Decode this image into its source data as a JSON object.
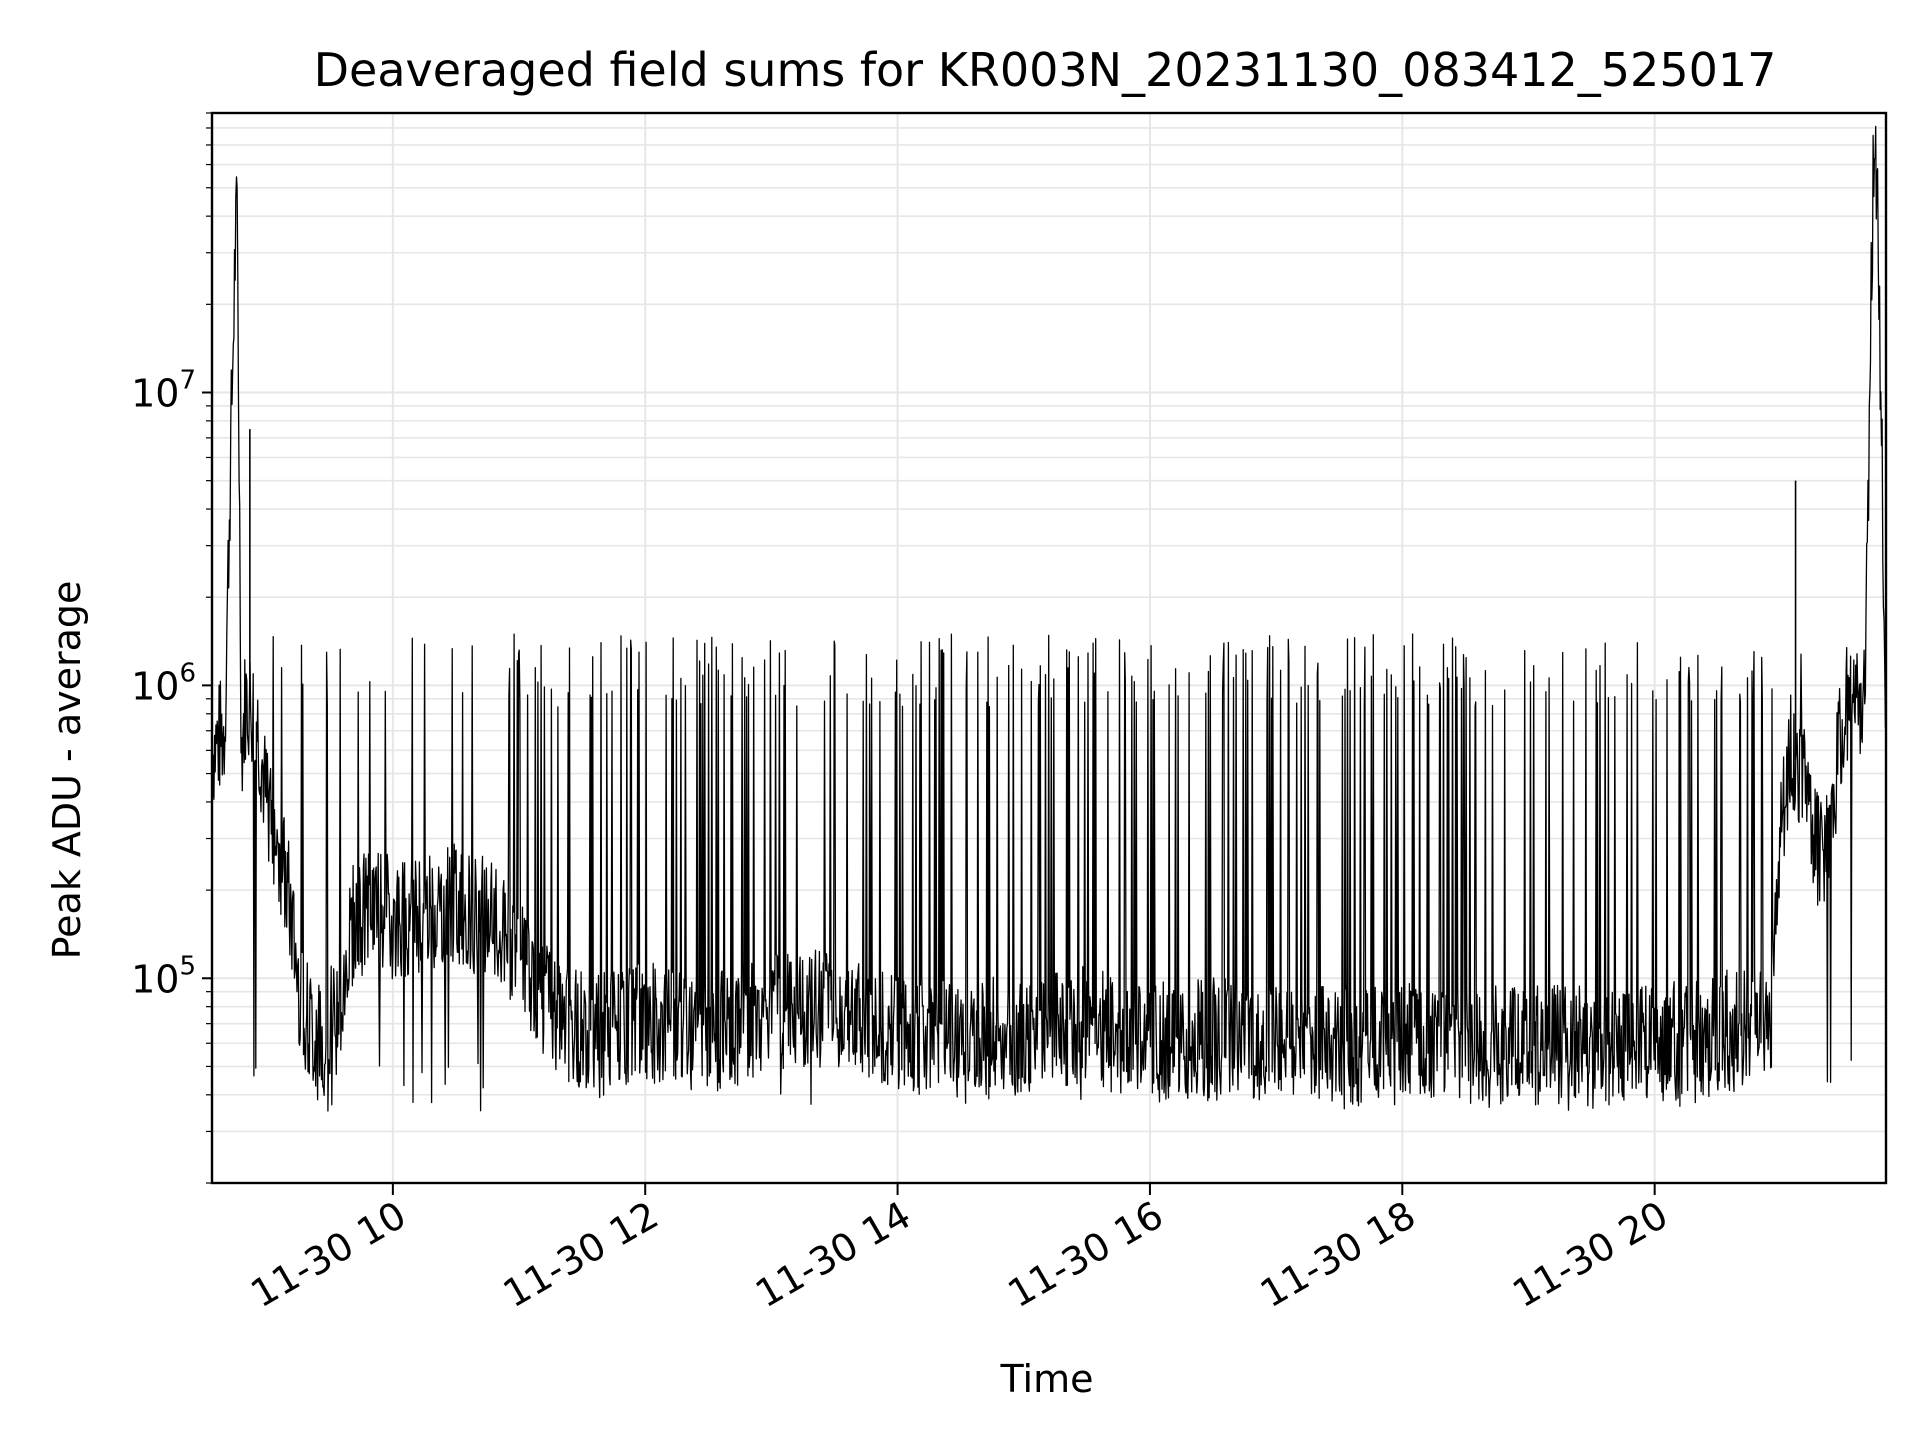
{
  "chart_data": {
    "type": "line",
    "title": "Deaveraged field sums for KR003N_20231130_083412_525017",
    "xlabel": "Time",
    "ylabel": "Peak ADU - average",
    "yscale": "log",
    "grid": true,
    "legend": "none",
    "line_color": "#000000",
    "grid_color": "#e6e6e6",
    "xlim": [
      "2023-11-30 08:34",
      "2023-11-30 21:50"
    ],
    "ylim": [
      20000,
      90000000
    ],
    "x_ticks": [
      {
        "value": "2023-11-30 10:00",
        "label": "11-30 10"
      },
      {
        "value": "2023-11-30 12:00",
        "label": "11-30 12"
      },
      {
        "value": "2023-11-30 14:00",
        "label": "11-30 14"
      },
      {
        "value": "2023-11-30 16:00",
        "label": "11-30 16"
      },
      {
        "value": "2023-11-30 18:00",
        "label": "11-30 18"
      },
      {
        "value": "2023-11-30 20:00",
        "label": "11-30 20"
      }
    ],
    "y_ticks": [
      {
        "value": 100000,
        "base": "10",
        "exp": "5"
      },
      {
        "value": 1000000,
        "base": "10",
        "exp": "6"
      },
      {
        "value": 10000000,
        "base": "10",
        "exp": "7"
      }
    ],
    "series": [
      {
        "x": [
          "2023-11-30 08:34",
          "2023-11-30 08:40",
          "2023-11-30 08:45",
          "2023-11-30 08:46",
          "2023-11-30 08:48",
          "2023-11-30 08:50",
          "2023-11-30 08:55",
          "2023-11-30 09:00",
          "2023-11-30 09:05",
          "2023-11-30 09:10",
          "2023-11-30 09:15",
          "2023-11-30 09:20",
          "2023-11-30 09:25",
          "2023-11-30 09:30",
          "2023-11-30 09:35",
          "2023-11-30 09:40",
          "2023-11-30 09:50",
          "2023-11-30 10:00",
          "2023-11-30 10:15",
          "2023-11-30 10:30",
          "2023-11-30 10:45",
          "2023-11-30 11:00",
          "2023-11-30 11:20",
          "2023-11-30 11:40",
          "2023-11-30 12:00",
          "2023-11-30 12:30",
          "2023-11-30 13:00",
          "2023-11-30 13:30",
          "2023-11-30 14:00",
          "2023-11-30 14:30",
          "2023-11-30 15:00",
          "2023-11-30 15:30",
          "2023-11-30 16:00",
          "2023-11-30 16:30",
          "2023-11-30 17:00",
          "2023-11-30 17:30",
          "2023-11-30 18:00",
          "2023-11-30 18:30",
          "2023-11-30 19:00",
          "2023-11-30 19:30",
          "2023-11-30 20:00",
          "2023-11-30 20:30",
          "2023-11-30 20:55",
          "2023-11-30 21:00",
          "2023-11-30 21:05",
          "2023-11-30 21:10",
          "2023-11-30 21:15",
          "2023-11-30 21:20",
          "2023-11-30 21:25",
          "2023-11-30 21:30",
          "2023-11-30 21:35",
          "2023-11-30 21:40",
          "2023-11-30 21:44",
          "2023-11-30 21:46",
          "2023-11-30 21:50"
        ],
        "y": [
          600000,
          700000,
          30000000,
          40000000,
          600000,
          900000,
          800000,
          400000,
          300000,
          200000,
          100000,
          70000,
          60000,
          70000,
          80000,
          150000,
          180000,
          160000,
          170000,
          180000,
          160000,
          120000,
          70000,
          65000,
          70000,
          65000,
          75000,
          80000,
          65000,
          60000,
          65000,
          70000,
          60000,
          62000,
          60000,
          58000,
          60000,
          58000,
          60000,
          58000,
          60000,
          65000,
          70000,
          300000,
          600000,
          500000,
          300000,
          250000,
          400000,
          800000,
          1000000,
          900000,
          60000000,
          50000000,
          800000
        ],
        "spikes": [
          {
            "x": "2023-11-30 08:52",
            "y": 7500000
          },
          {
            "x": "2023-11-30 21:07",
            "y": 5000000
          }
        ],
        "envelope": {
          "spike_level_approx": 1300000,
          "min_level_approx": 40000
        }
      }
    ]
  }
}
